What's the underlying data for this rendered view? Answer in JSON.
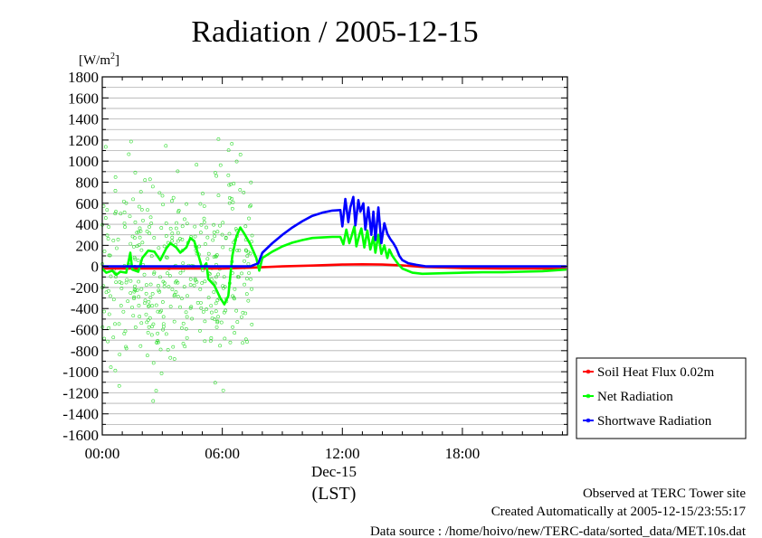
{
  "chart_data": {
    "type": "line",
    "title": "Radiation / 2005-12-15",
    "ylabel_unit": "[W/m",
    "ylabel_sup": "2",
    "ylabel_close": "]",
    "ylim": [
      -1600,
      1800
    ],
    "xlim_hours": [
      0,
      23.25
    ],
    "yticks": [
      1800,
      1600,
      1400,
      1200,
      1000,
      800,
      600,
      400,
      200,
      0,
      -200,
      -400,
      -600,
      -800,
      -1000,
      -1200,
      -1400,
      -1600
    ],
    "ytick_labels": [
      "1800",
      "1600",
      "1400",
      "1200",
      "1000",
      "800",
      "600",
      "400",
      "200",
      "0",
      "-200",
      "-400",
      "-600",
      "-800",
      "-1000",
      "-1200",
      "-1400",
      "-1600"
    ],
    "xticks_hours": [
      0,
      6,
      12,
      18
    ],
    "xtick_labels": [
      "00:00",
      "06:00",
      "12:00",
      "18:00"
    ],
    "xlabel_date": "Dec-15",
    "xlabel": "(LST)",
    "grid": true,
    "legend_position": "right-middle",
    "series": [
      {
        "name": "Soil Heat Flux 0.02m",
        "color": "#ff0000",
        "points": [
          [
            0,
            -20
          ],
          [
            6,
            -20
          ],
          [
            7.5,
            -12
          ],
          [
            9,
            0
          ],
          [
            10.5,
            8
          ],
          [
            12,
            18
          ],
          [
            13,
            20
          ],
          [
            14,
            18
          ],
          [
            15,
            10
          ],
          [
            16,
            -5
          ],
          [
            18,
            -15
          ],
          [
            20,
            -20
          ],
          [
            22,
            -20
          ],
          [
            23.2,
            -22
          ]
        ]
      },
      {
        "name": "Net Radiation",
        "color": "#00ff00",
        "points": [
          [
            0,
            -20
          ],
          [
            0.2,
            -60
          ],
          [
            0.5,
            -40
          ],
          [
            0.7,
            -80
          ],
          [
            0.9,
            -50
          ],
          [
            1.2,
            -60
          ],
          [
            1.4,
            130
          ],
          [
            1.5,
            -30
          ],
          [
            1.8,
            -50
          ],
          [
            2.0,
            80
          ],
          [
            2.3,
            150
          ],
          [
            2.6,
            140
          ],
          [
            2.9,
            60
          ],
          [
            3.2,
            170
          ],
          [
            3.4,
            220
          ],
          [
            3.7,
            180
          ],
          [
            3.9,
            130
          ],
          [
            4.2,
            180
          ],
          [
            4.4,
            270
          ],
          [
            4.6,
            240
          ],
          [
            4.8,
            110
          ],
          [
            5.0,
            -20
          ],
          [
            5.2,
            30
          ],
          [
            5.3,
            -120
          ],
          [
            5.6,
            -180
          ],
          [
            5.9,
            -300
          ],
          [
            6.1,
            -360
          ],
          [
            6.3,
            -280
          ],
          [
            6.5,
            100
          ],
          [
            6.7,
            280
          ],
          [
            6.9,
            370
          ],
          [
            7.1,
            310
          ],
          [
            7.4,
            210
          ],
          [
            7.7,
            80
          ],
          [
            7.85,
            -40
          ],
          [
            8.0,
            80
          ],
          [
            8.5,
            140
          ],
          [
            9,
            190
          ],
          [
            9.5,
            225
          ],
          [
            10,
            250
          ],
          [
            10.5,
            270
          ],
          [
            11,
            275
          ],
          [
            11.5,
            280
          ],
          [
            11.9,
            280
          ],
          [
            12.05,
            210
          ],
          [
            12.2,
            350
          ],
          [
            12.35,
            220
          ],
          [
            12.45,
            280
          ],
          [
            12.6,
            380
          ],
          [
            12.7,
            190
          ],
          [
            12.85,
            300
          ],
          [
            12.95,
            360
          ],
          [
            13.1,
            180
          ],
          [
            13.25,
            340
          ],
          [
            13.4,
            160
          ],
          [
            13.55,
            280
          ],
          [
            13.65,
            130
          ],
          [
            13.8,
            300
          ],
          [
            13.95,
            120
          ],
          [
            14.1,
            200
          ],
          [
            14.25,
            80
          ],
          [
            14.35,
            160
          ],
          [
            14.5,
            100
          ],
          [
            14.65,
            60
          ],
          [
            14.8,
            20
          ],
          [
            15,
            -20
          ],
          [
            15.5,
            -60
          ],
          [
            16,
            -70
          ],
          [
            17,
            -65
          ],
          [
            18,
            -60
          ],
          [
            19,
            -55
          ],
          [
            20,
            -55
          ],
          [
            21,
            -50
          ],
          [
            22,
            -45
          ],
          [
            23.2,
            -30
          ]
        ]
      },
      {
        "name": "Shortwave Radiation",
        "color": "#0000ff",
        "points": [
          [
            0,
            0
          ],
          [
            7.4,
            0
          ],
          [
            7.8,
            30
          ],
          [
            8,
            130
          ],
          [
            8.5,
            220
          ],
          [
            9,
            300
          ],
          [
            9.5,
            370
          ],
          [
            10,
            430
          ],
          [
            10.5,
            480
          ],
          [
            11,
            510
          ],
          [
            11.5,
            530
          ],
          [
            11.9,
            535
          ],
          [
            12.0,
            380
          ],
          [
            12.15,
            640
          ],
          [
            12.3,
            420
          ],
          [
            12.4,
            560
          ],
          [
            12.55,
            660
          ],
          [
            12.65,
            390
          ],
          [
            12.8,
            630
          ],
          [
            12.9,
            520
          ],
          [
            13.05,
            600
          ],
          [
            13.15,
            350
          ],
          [
            13.3,
            560
          ],
          [
            13.45,
            300
          ],
          [
            13.55,
            520
          ],
          [
            13.65,
            250
          ],
          [
            13.8,
            560
          ],
          [
            13.95,
            220
          ],
          [
            14.1,
            410
          ],
          [
            14.25,
            310
          ],
          [
            14.4,
            260
          ],
          [
            14.55,
            220
          ],
          [
            14.7,
            170
          ],
          [
            14.85,
            100
          ],
          [
            15,
            60
          ],
          [
            15.3,
            30
          ],
          [
            15.7,
            15
          ],
          [
            16.2,
            0
          ],
          [
            23.2,
            0
          ]
        ]
      }
    ]
  },
  "legend": {
    "items": [
      {
        "label": "Soil Heat Flux 0.02m",
        "color": "#ff0000"
      },
      {
        "label": "Net Radiation",
        "color": "#00ff00"
      },
      {
        "label": "Shortwave Radiation",
        "color": "#0000ff"
      }
    ]
  },
  "footer": {
    "observed": "Observed at TERC Tower site",
    "created": "Created Automatically at 2005-12-15/23:55:17",
    "source": "Data source : /home/hoivo/new/TERC-data/sorted_data/MET.10s.dat"
  }
}
